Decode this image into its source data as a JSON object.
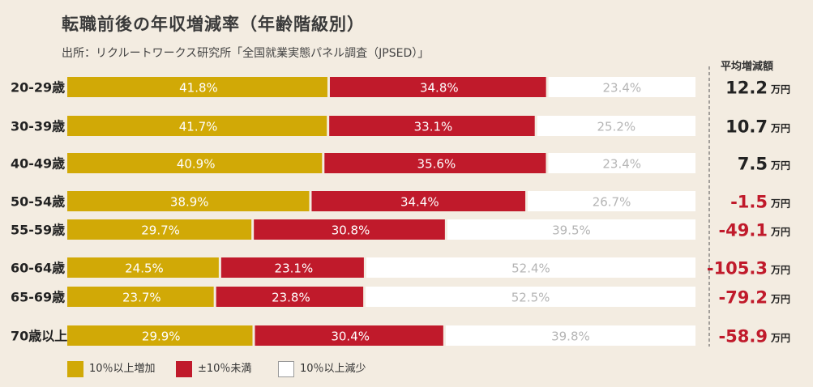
{
  "colors": {
    "increase": "#d1a906",
    "flat": "#c01a2b",
    "decrease": "#ffffff",
    "decrease_text": "#b5b5b5",
    "positive_avg": "#222222",
    "negative_avg": "#c01a2b",
    "background": "#f3ece1"
  },
  "header": {
    "title": "転職前後の年収増減率（年齢階級別）",
    "source": "出所：リクルートワークス研究所「全国就業実態パネル調査（JPSED）」",
    "avg_label": "平均増減額"
  },
  "chart_data": {
    "type": "bar",
    "orientation": "horizontal",
    "stacked": true,
    "unit": "%",
    "title": "転職前後の年収増減率（年齢階級別）",
    "categories": [
      "20-29歳",
      "30-39歳",
      "40-49歳",
      "50-54歳",
      "55-59歳",
      "60-64歳",
      "65-69歳",
      "70歳以上"
    ],
    "series": [
      {
        "name": "10％以上増加",
        "values": [
          41.8,
          41.7,
          40.9,
          38.9,
          29.7,
          24.5,
          23.7,
          29.9
        ]
      },
      {
        "name": "±10％未満",
        "values": [
          34.8,
          33.1,
          35.6,
          34.4,
          30.8,
          23.1,
          23.8,
          30.4
        ]
      },
      {
        "name": "10％以上減少",
        "values": [
          23.4,
          25.2,
          23.4,
          26.7,
          39.5,
          52.4,
          52.5,
          39.8
        ]
      }
    ],
    "labels": [
      [
        "41.8%",
        "34.8%",
        "23.4%"
      ],
      [
        "41.7%",
        "33.1%",
        "25.2%"
      ],
      [
        "40.9%",
        "35.6%",
        "23.4%"
      ],
      [
        "38.9%",
        "34.4%",
        "26.7%"
      ],
      [
        "29.7%",
        "30.8%",
        "39.5%"
      ],
      [
        "24.5%",
        "23.1%",
        "52.4%"
      ],
      [
        "23.7%",
        "23.8%",
        "52.5%"
      ],
      [
        "29.9%",
        "30.4%",
        "39.8%"
      ]
    ],
    "avg_change": {
      "header": "平均増減額",
      "unit": "万円",
      "values": [
        12.2,
        10.7,
        7.5,
        -1.5,
        -49.1,
        -105.3,
        -79.2,
        -58.9
      ],
      "display": [
        "12.2",
        "10.7",
        "7.5",
        "-1.5",
        "-49.1",
        "-105.3",
        "-79.2",
        "-58.9"
      ]
    },
    "xlim": [
      0,
      100
    ],
    "legend_position": "bottom-left"
  },
  "legend": {
    "items": [
      {
        "label": "10％以上増加"
      },
      {
        "label": "±10％未満"
      },
      {
        "label": "10％以上減少"
      }
    ]
  }
}
